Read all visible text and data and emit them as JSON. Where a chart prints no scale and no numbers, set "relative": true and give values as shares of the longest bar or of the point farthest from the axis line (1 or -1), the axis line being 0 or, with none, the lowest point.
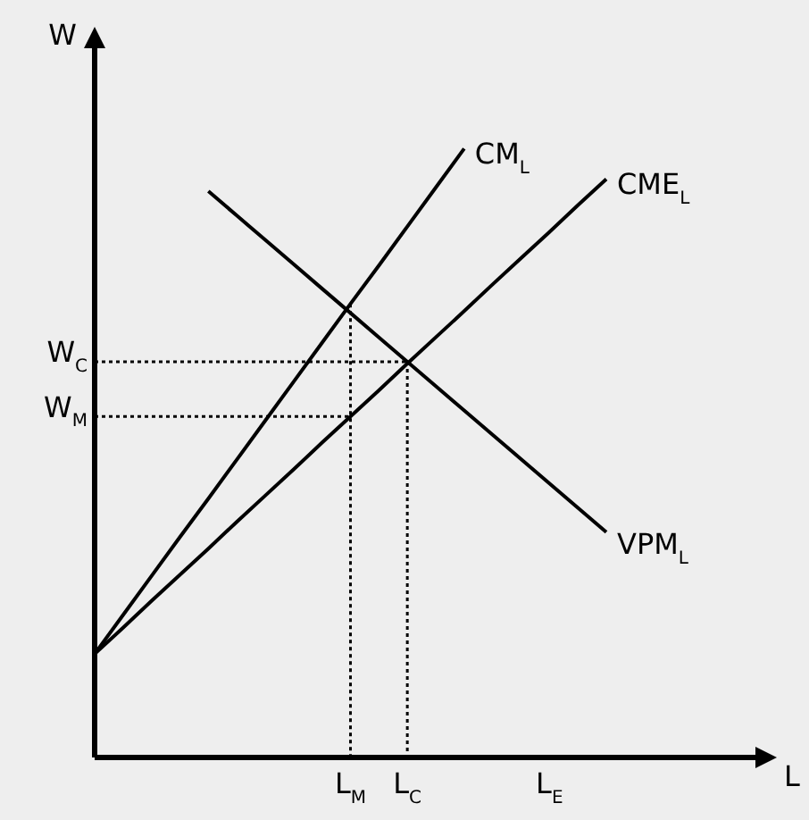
{
  "chart_data": {
    "type": "line",
    "relative": true,
    "xlabel": "L",
    "ylabel": "W",
    "marker": "none",
    "line_style": "solid",
    "categories": [
      null,
      null,
      null,
      null,
      null,
      null,
      null,
      null,
      null,
      "L$_{M}$",
      null,
      "L$_{C}$",
      null,
      null,
      null,
      null,
      "L$_{E}$",
      null,
      null,
      null,
      null,
      null,
      null,
      null,
      null
    ],
    "series": [
      {
        "name": "CM$_{L}$",
        "color": "#000000",
        "values": [
          0.17,
          0.234,
          0.298,
          0.362,
          0.425,
          0.489,
          0.553,
          0.617,
          0.681,
          0.745,
          0.808,
          0.872,
          0.936,
          1,
          null,
          null,
          null,
          null,
          null,
          null,
          null,
          null,
          null,
          null,
          null
        ]
      },
      {
        "name": "CME$_{L}$",
        "color": "#000000",
        "values": [
          0.17,
          0.213,
          0.257,
          0.3,
          0.343,
          0.387,
          0.43,
          0.473,
          0.517,
          0.56,
          0.603,
          0.647,
          0.69,
          0.733,
          0.777,
          0.82,
          0.863,
          0.907,
          0.95,
          null,
          null,
          null,
          null,
          null,
          null
        ]
      },
      {
        "name": "VPM$_{L}$",
        "color": "#000000",
        "values": [
          null,
          null,
          null,
          null,
          0.93,
          0.89,
          0.85,
          0.81,
          0.77,
          0.73,
          0.69,
          0.65,
          0.61,
          0.57,
          0.53,
          0.49,
          0.45,
          0.41,
          0.37,
          null,
          null,
          null,
          null,
          null,
          null
        ]
      },
      {
        "name": "W$_{C}$",
        "color": "#000000",
        "line_style": "dotted",
        "values": [
          0.65,
          0.65,
          0.65,
          0.65,
          0.65,
          0.65,
          0.65,
          0.65,
          0.65,
          0.65,
          0.65,
          0.65,
          null,
          null,
          null,
          null,
          null,
          null,
          null,
          null,
          null,
          null,
          null,
          null,
          null
        ]
      },
      {
        "name": "W$_{M}$",
        "color": "#000000",
        "line_style": "dotted",
        "values": [
          0.56,
          0.56,
          0.56,
          0.56,
          0.56,
          0.56,
          0.56,
          0.56,
          0.56,
          0.56,
          null,
          null,
          null,
          null,
          null,
          null,
          null,
          null,
          null,
          null,
          null,
          null,
          null,
          null,
          null
        ]
      },
      {
        "color": "#000000",
        "line_style": "dotted",
        "x": [
          "L$_{C}$",
          "L$_{C}$"
        ],
        "values": [
          0.65,
          0
        ]
      },
      {
        "color": "#000000",
        "line_style": "dotted",
        "x": [
          "L$_{M}$",
          "L$_{M}$"
        ],
        "values": [
          0.745,
          0
        ]
      }
    ]
  }
}
